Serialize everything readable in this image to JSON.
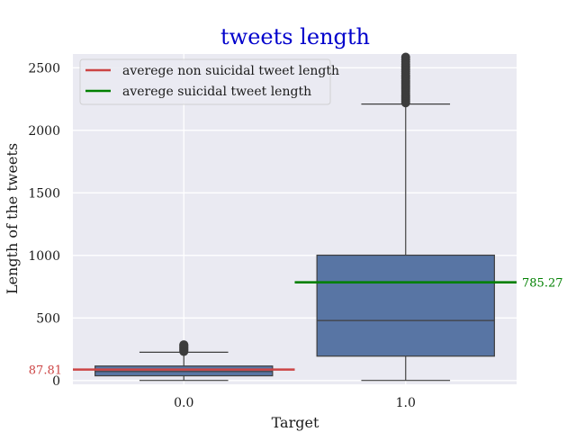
{
  "chart_data": {
    "type": "box",
    "title": "tweets length",
    "xlabel": "Target",
    "ylabel": "Length of the tweets",
    "categories": [
      "0.0",
      "1.0"
    ],
    "ylim": [
      -30,
      2610
    ],
    "yticks": [
      0,
      500,
      1000,
      1500,
      2000,
      2500
    ],
    "grid": true,
    "legend_position": "upper-left",
    "boxes": [
      {
        "category": "0.0",
        "q1": 38,
        "median": 72,
        "q3": 116,
        "whisker_low": 1,
        "whisker_high": 226,
        "outliers": [
          232,
          238,
          244,
          250,
          256,
          262,
          268,
          274,
          280,
          286
        ],
        "color": "#5875a4"
      },
      {
        "category": "1.0",
        "q1": 195,
        "median": 480,
        "q3": 1002,
        "whisker_low": 1,
        "whisker_high": 2210,
        "outliers": [
          2220,
          2232,
          2245,
          2258,
          2270,
          2282,
          2296,
          2310,
          2322,
          2335,
          2348,
          2360,
          2374,
          2388,
          2400,
          2414,
          2428,
          2440,
          2455,
          2470,
          2485,
          2500,
          2515,
          2530,
          2548,
          2565,
          2585,
          2600
        ],
        "color": "#5875a4"
      }
    ],
    "mean_lines": [
      {
        "name": "averege non suicidal tweet length",
        "value": 87.81,
        "label": "87.81",
        "color": "#cc4444",
        "x_from": -0.5,
        "x_to": 0.5,
        "label_side": "left"
      },
      {
        "name": "averege suicidal tweet length",
        "value": 785.27,
        "label": "785.27",
        "color": "#008000",
        "x_from": 0.5,
        "x_to": 1.5,
        "label_side": "right"
      }
    ],
    "colors": {
      "title": "#0000cc",
      "background": "#eaeaf2",
      "grid": "#ffffff",
      "box_edge": "#3f3f3f"
    }
  }
}
